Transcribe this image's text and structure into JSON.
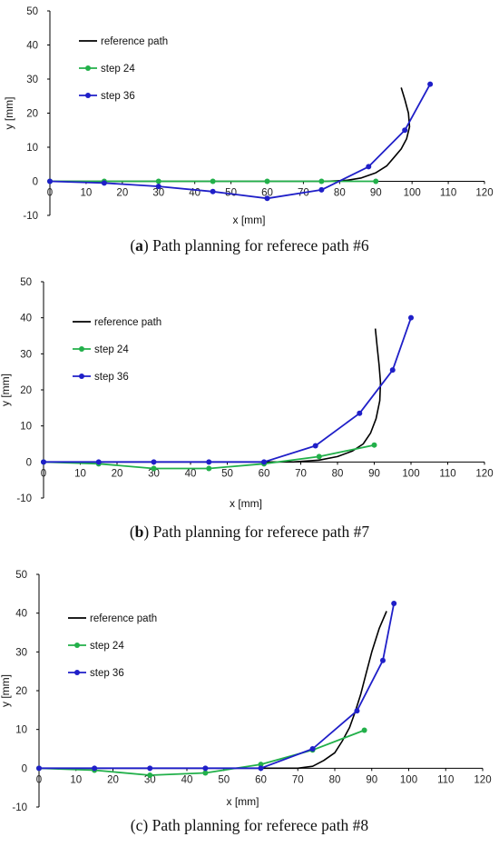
{
  "captions": [
    {
      "prefix": "(",
      "letter": "a",
      "text": ") Path planning for referece path #6"
    },
    {
      "prefix": "(",
      "letter": "b",
      "text": ") Path planning for referece path #7"
    },
    {
      "prefix": "",
      "letter": "",
      "text": "(c) Path planning for referece path #8"
    }
  ],
  "colors": {
    "reference": "#000000",
    "step24": "#22b04a",
    "step36": "#1f1fc8",
    "axis": "#000000"
  },
  "chart_data": [
    {
      "type": "line",
      "xlabel": "x [mm]",
      "ylabel": "y [mm]",
      "xlim": [
        0,
        120
      ],
      "ylim": [
        -10,
        50
      ],
      "xticks": [
        0,
        10,
        20,
        30,
        40,
        50,
        60,
        70,
        80,
        90,
        100,
        110,
        120
      ],
      "yticks": [
        -10,
        0,
        10,
        20,
        30,
        40,
        50
      ],
      "grid": false,
      "legend": "top-left",
      "series": [
        {
          "name": "reference path",
          "style": "line",
          "x": [
            0,
            76,
            82,
            86,
            90,
            93,
            95,
            97,
            98.5,
            99.3,
            99,
            98,
            97
          ],
          "y": [
            0,
            0,
            0.3,
            1,
            2.5,
            4.5,
            7,
            9.5,
            12.5,
            16,
            20,
            24,
            27.5
          ]
        },
        {
          "name": "step 24",
          "style": "line-marker",
          "x": [
            0,
            15,
            30,
            45,
            60,
            75,
            90
          ],
          "y": [
            0,
            0,
            0,
            0,
            0,
            0,
            0
          ]
        },
        {
          "name": "step 36",
          "style": "line-marker",
          "x": [
            0,
            15,
            30,
            45,
            60,
            75,
            88,
            98,
            105
          ],
          "y": [
            0,
            -0.5,
            -1.5,
            -3,
            -5,
            -2.5,
            4.3,
            15,
            28.5
          ]
        }
      ]
    },
    {
      "type": "line",
      "xlabel": "x [mm]",
      "ylabel": "y [mm]",
      "xlim": [
        0,
        120
      ],
      "ylim": [
        -10,
        50
      ],
      "xticks": [
        0,
        10,
        20,
        30,
        40,
        50,
        60,
        70,
        80,
        90,
        100,
        110,
        120
      ],
      "yticks": [
        -10,
        0,
        10,
        20,
        30,
        40,
        50
      ],
      "grid": false,
      "legend": "top-left",
      "series": [
        {
          "name": "reference path",
          "style": "line",
          "x": [
            0,
            68,
            75,
            80,
            84,
            87,
            89,
            90.5,
            91.5,
            91.7,
            91.3,
            90.8,
            90.3
          ],
          "y": [
            0,
            0,
            0.5,
            1.5,
            3,
            5,
            8,
            12,
            17,
            22,
            27,
            32,
            37
          ]
        },
        {
          "name": "step 24",
          "style": "line-marker",
          "x": [
            0,
            15,
            30,
            45,
            60,
            75,
            90
          ],
          "y": [
            0,
            -0.5,
            -1.8,
            -1.8,
            -0.5,
            1.5,
            4.7
          ]
        },
        {
          "name": "step 36",
          "style": "line-marker",
          "x": [
            0,
            15,
            30,
            45,
            60,
            74,
            86,
            95,
            100
          ],
          "y": [
            0,
            0,
            0,
            0,
            0,
            4.5,
            13.5,
            25.5,
            40
          ]
        }
      ]
    },
    {
      "type": "line",
      "xlabel": "x [mm]",
      "ylabel": "y [mm]",
      "xlim": [
        0,
        120
      ],
      "ylim": [
        -10,
        50
      ],
      "xticks": [
        0,
        10,
        20,
        30,
        40,
        50,
        60,
        70,
        80,
        90,
        100,
        110,
        120
      ],
      "yticks": [
        -10,
        0,
        10,
        20,
        30,
        40,
        50
      ],
      "grid": false,
      "legend": "top-left",
      "series": [
        {
          "name": "reference path",
          "style": "line",
          "x": [
            0,
            70,
            74,
            77,
            80,
            82,
            84,
            85.5,
            87,
            88.5,
            90,
            92,
            94
          ],
          "y": [
            0,
            0,
            0.5,
            2,
            4,
            7,
            10.5,
            14.5,
            19,
            24.5,
            30,
            36,
            40.5
          ]
        },
        {
          "name": "step 24",
          "style": "line-marker",
          "x": [
            0,
            15,
            30,
            45,
            60,
            74,
            88
          ],
          "y": [
            0,
            -0.5,
            -1.8,
            -1.2,
            1,
            4.7,
            9.8
          ]
        },
        {
          "name": "step 36",
          "style": "line-marker",
          "x": [
            0,
            15,
            30,
            45,
            60,
            74,
            86,
            93,
            96
          ],
          "y": [
            0,
            0,
            0,
            0,
            0,
            5,
            14.8,
            27.8,
            42.5
          ]
        }
      ]
    }
  ]
}
